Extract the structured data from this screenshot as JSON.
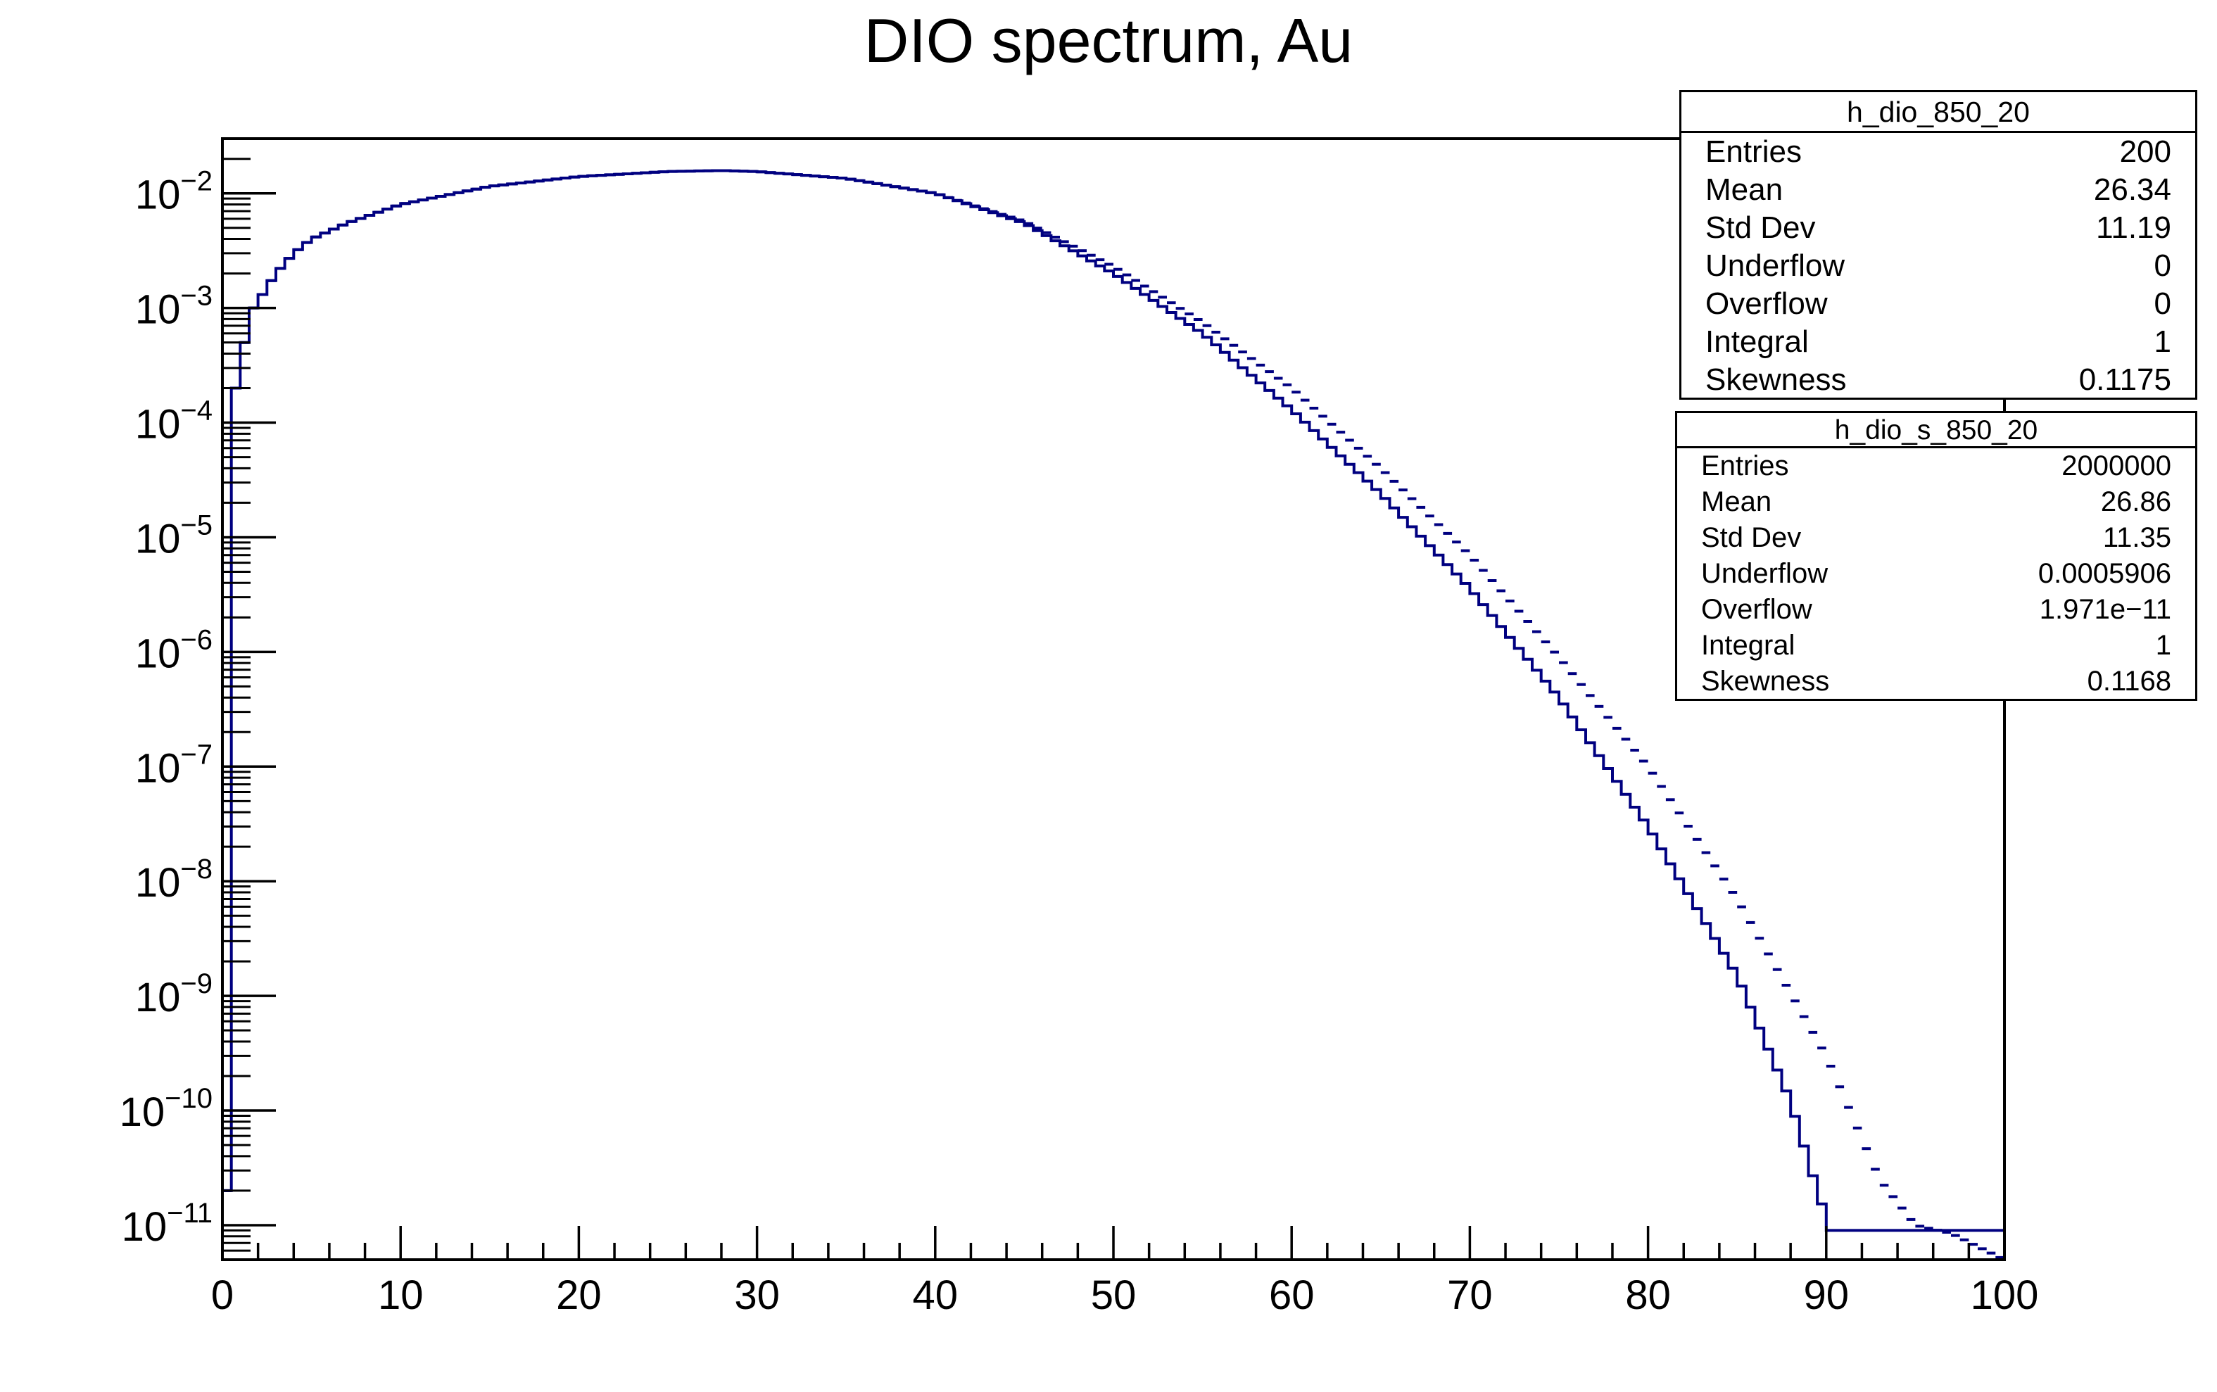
{
  "chart_data": {
    "type": "histogram-step",
    "title": "DIO spectrum, Au",
    "xlabel": "",
    "ylabel": "",
    "xlim": [
      0,
      100
    ],
    "ylim": [
      5e-12,
      0.03
    ],
    "yscale": "log",
    "grid": false,
    "x_ticks": [
      "0",
      "10",
      "20",
      "30",
      "40",
      "50",
      "60",
      "70",
      "80",
      "90",
      "100"
    ],
    "x_tick_values": [
      0,
      10,
      20,
      30,
      40,
      50,
      60,
      70,
      80,
      90,
      100
    ],
    "y_tick_values": [
      1e-11,
      1e-10,
      1e-09,
      1e-08,
      1e-07,
      1e-06,
      1e-05,
      0.0001,
      0.001,
      0.01
    ],
    "y_tick_base": "10",
    "y_tick_exponents": [
      "−11",
      "−10",
      "−9",
      "−8",
      "−7",
      "−6",
      "−5",
      "−4",
      "−3",
      "−2"
    ],
    "line_color": "#000080",
    "series": [
      {
        "name": "h_dio_850_20",
        "style": "step",
        "bins": 200,
        "bin_width": 0.5,
        "anchors": [
          [
            0.25,
            2e-11
          ],
          [
            0.75,
            0.0002
          ],
          [
            1.25,
            0.0005
          ],
          [
            1.75,
            0.001
          ],
          [
            2.5,
            0.0015
          ],
          [
            3,
            0.002
          ],
          [
            4,
            0.003
          ],
          [
            5,
            0.004
          ],
          [
            7,
            0.0055
          ],
          [
            10,
            0.008
          ],
          [
            15,
            0.0115
          ],
          [
            20,
            0.014
          ],
          [
            25,
            0.0155
          ],
          [
            28,
            0.0158
          ],
          [
            30,
            0.0155
          ],
          [
            35,
            0.0135
          ],
          [
            40,
            0.01
          ],
          [
            45,
            0.0055
          ],
          [
            50,
            0.002
          ],
          [
            55,
            0.0006
          ],
          [
            60,
            0.00013
          ],
          [
            65,
            2.4e-05
          ],
          [
            70,
            3.6e-06
          ],
          [
            75,
            4e-07
          ],
          [
            80,
            3e-08
          ],
          [
            85,
            1.5e-09
          ],
          [
            88,
            1.2e-10
          ],
          [
            89.5,
            2e-11
          ],
          [
            90.25,
            9e-12
          ],
          [
            100,
            9e-12
          ]
        ]
      },
      {
        "name": "h_dio_s_850_20",
        "style": "dash",
        "bins": 200,
        "bin_width": 0.5,
        "anchors": [
          [
            0.25,
            2e-11
          ],
          [
            0.75,
            0.0002
          ],
          [
            1.25,
            0.0005
          ],
          [
            1.75,
            0.001
          ],
          [
            2.5,
            0.0015
          ],
          [
            3,
            0.002
          ],
          [
            4,
            0.003
          ],
          [
            5,
            0.004
          ],
          [
            7,
            0.0055
          ],
          [
            10,
            0.008
          ],
          [
            15,
            0.0115
          ],
          [
            20,
            0.014
          ],
          [
            25,
            0.0155
          ],
          [
            28,
            0.0158
          ],
          [
            30,
            0.0155
          ],
          [
            35,
            0.0135
          ],
          [
            40,
            0.01
          ],
          [
            45,
            0.0057
          ],
          [
            50,
            0.0023
          ],
          [
            55,
            0.00075
          ],
          [
            60,
            0.0002
          ],
          [
            65,
            4e-05
          ],
          [
            70,
            7e-06
          ],
          [
            75,
            9e-07
          ],
          [
            80,
            1e-07
          ],
          [
            85,
            7e-09
          ],
          [
            90,
            3e-10
          ],
          [
            93,
            2.5e-11
          ],
          [
            95,
            1e-11
          ],
          [
            97,
            8.5e-12
          ],
          [
            100,
            5e-12
          ]
        ]
      }
    ]
  },
  "stats_boxes": [
    {
      "title": "h_dio_850_20",
      "rows": [
        {
          "label": "Entries",
          "value": "200"
        },
        {
          "label": "Mean",
          "value": "26.34"
        },
        {
          "label": "Std Dev",
          "value": "11.19"
        },
        {
          "label": "Underflow",
          "value": "0"
        },
        {
          "label": "Overflow",
          "value": "0"
        },
        {
          "label": "Integral",
          "value": "1"
        },
        {
          "label": "Skewness",
          "value": "0.1175"
        }
      ]
    },
    {
      "title": "h_dio_s_850_20",
      "rows": [
        {
          "label": "Entries",
          "value": "2000000"
        },
        {
          "label": "Mean",
          "value": "26.86"
        },
        {
          "label": "Std Dev",
          "value": "11.35"
        },
        {
          "label": "Underflow",
          "value": "0.0005906"
        },
        {
          "label": "Overflow",
          "value": "1.971e−11"
        },
        {
          "label": "Integral",
          "value": "1"
        },
        {
          "label": "Skewness",
          "value": "0.1168"
        }
      ]
    }
  ]
}
